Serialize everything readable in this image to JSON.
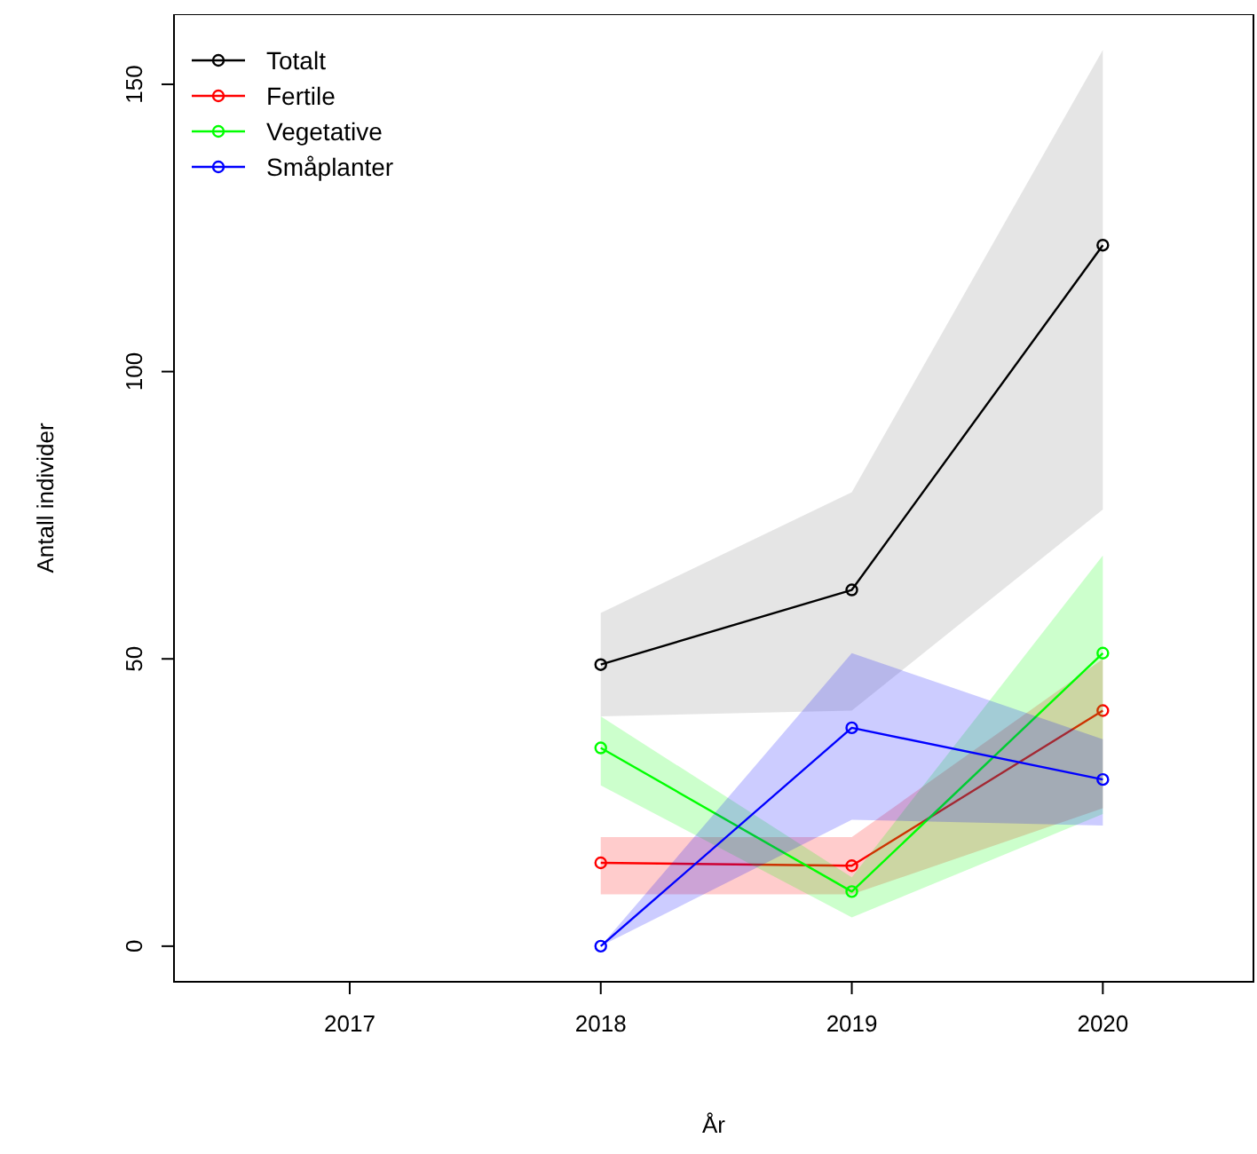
{
  "chart_data": {
    "type": "line",
    "xlabel": "År",
    "ylabel": "Antall individer",
    "x": [
      2018,
      2019,
      2020
    ],
    "series": [
      {
        "name": "Totalt",
        "color": "#000000",
        "values": [
          49,
          62,
          122
        ],
        "lower": [
          40,
          41,
          76
        ],
        "upper": [
          58,
          79,
          156
        ]
      },
      {
        "name": "Fertile",
        "color": "#ff0000",
        "values": [
          14.5,
          14,
          41
        ],
        "lower": [
          9,
          9,
          24
        ],
        "upper": [
          19,
          19,
          50
        ]
      },
      {
        "name": "Vegetative",
        "color": "#00ff00",
        "values": [
          34.5,
          9.5,
          51
        ],
        "lower": [
          28,
          5,
          23
        ],
        "upper": [
          40,
          12,
          68
        ]
      },
      {
        "name": "Småplanter",
        "color": "#0000ff",
        "values": [
          0,
          38,
          29
        ],
        "lower": [
          0,
          22,
          21
        ],
        "upper": [
          0,
          51,
          36
        ]
      }
    ],
    "xlim": [
      2016.3,
      2020.6
    ],
    "ylim": [
      -6.2,
      162.2
    ],
    "xticks": [
      2017,
      2018,
      2019,
      2020
    ],
    "yticks": [
      0,
      50,
      100,
      150
    ],
    "grid": false,
    "legend": "top left",
    "marker": "circle",
    "line_style": "solid"
  }
}
